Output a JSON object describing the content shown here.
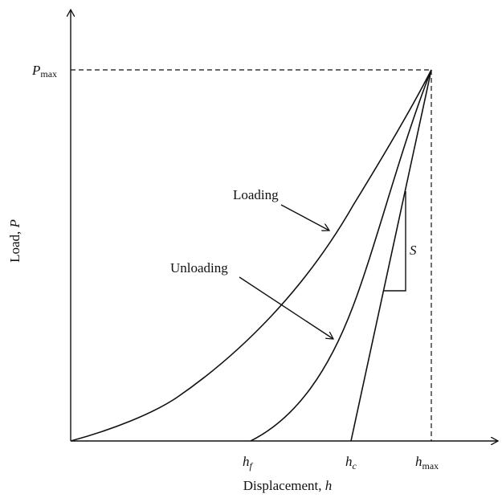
{
  "y_axis": {
    "label": "Load, ",
    "label_var": "P",
    "max_main": "P",
    "max_sub": "max"
  },
  "x_axis": {
    "label": "Displacement, ",
    "label_var": "h",
    "ticks": [
      {
        "main": "h",
        "sub": "f"
      },
      {
        "main": "h",
        "sub": "c"
      },
      {
        "main": "h",
        "sub": "max"
      }
    ]
  },
  "annotations": {
    "loading": "Loading",
    "unloading": "Unloading",
    "stiffness": "S"
  }
}
